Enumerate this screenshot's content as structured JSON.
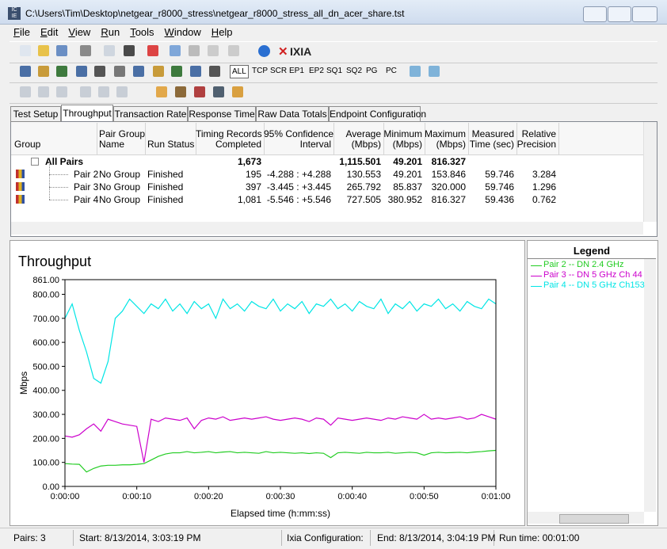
{
  "window": {
    "title": "C:\\Users\\Tim\\Desktop\\netgear_r8000_stress\\netgear_r8000_stress_all_dn_acer_share.tst"
  },
  "menu": [
    "File",
    "Edit",
    "View",
    "Run",
    "Tools",
    "Window",
    "Help"
  ],
  "toolbar": {
    "logo": "IXIA",
    "filters": [
      "ALL",
      "TCP",
      "SCR",
      "EP1",
      "EP2",
      "SQ1",
      "SQ2",
      "PG",
      "PC"
    ]
  },
  "tabs": [
    "Test Setup",
    "Throughput",
    "Transaction Rate",
    "Response Time",
    "Raw Data Totals",
    "Endpoint Configuration"
  ],
  "table": {
    "columns": [
      [
        "Group"
      ],
      [
        "Pair Group",
        "Name"
      ],
      [
        "Run Status"
      ],
      [
        "Timing Records",
        "Completed"
      ],
      [
        "95% Confidence",
        "Interval"
      ],
      [
        "Average",
        "(Mbps)"
      ],
      [
        "Minimum",
        "(Mbps)"
      ],
      [
        "Maximum",
        "(Mbps)"
      ],
      [
        "Measured",
        "Time (sec)"
      ],
      [
        "Relative",
        "Precision"
      ]
    ],
    "rows": [
      {
        "group": "All Pairs",
        "records": "1,673",
        "average": "1,115.501",
        "minimum": "49.201",
        "maximum": "816.327"
      },
      {
        "group": "Pair 2",
        "pair_group_name": "No Group",
        "run_status": "Finished",
        "records": "195",
        "confidence": "-4.288 : +4.288",
        "average": "130.553",
        "minimum": "49.201",
        "maximum": "153.846",
        "measured_time": "59.746",
        "relative_precision": "3.284"
      },
      {
        "group": "Pair 3",
        "pair_group_name": "No Group",
        "run_status": "Finished",
        "records": "397",
        "confidence": "-3.445 : +3.445",
        "average": "265.792",
        "minimum": "85.837",
        "maximum": "320.000",
        "measured_time": "59.746",
        "relative_precision": "1.296"
      },
      {
        "group": "Pair 4",
        "pair_group_name": "No Group",
        "run_status": "Finished",
        "records": "1,081",
        "confidence": "-5.546 : +5.546",
        "average": "727.505",
        "minimum": "380.952",
        "maximum": "816.327",
        "measured_time": "59.436",
        "relative_precision": "0.762"
      }
    ]
  },
  "chart_data": {
    "type": "line",
    "title": "Throughput",
    "x_label": "Elapsed time (h:mm:ss)",
    "y_label": "Mbps",
    "legend_title": "Legend",
    "x": [
      0,
      1,
      2,
      3,
      4,
      5,
      6,
      7,
      8,
      9,
      10,
      11,
      12,
      13,
      14,
      15,
      16,
      17,
      18,
      19,
      20,
      21,
      22,
      23,
      24,
      25,
      26,
      27,
      28,
      29,
      30,
      31,
      32,
      33,
      34,
      35,
      36,
      37,
      38,
      39,
      40,
      41,
      42,
      43,
      44,
      45,
      46,
      47,
      48,
      49,
      50,
      51,
      52,
      53,
      54,
      55,
      56,
      57,
      58,
      59,
      60
    ],
    "xlim": [
      0,
      60
    ],
    "xticks": [
      {
        "value": 0,
        "label": "0:00:00"
      },
      {
        "value": 10,
        "label": "0:00:10"
      },
      {
        "value": 20,
        "label": "0:00:20"
      },
      {
        "value": 30,
        "label": "0:00:30"
      },
      {
        "value": 40,
        "label": "0:00:40"
      },
      {
        "value": 50,
        "label": "0:00:50"
      },
      {
        "value": 60,
        "label": "0:01:00"
      }
    ],
    "ylim": [
      0,
      861
    ],
    "yticks": [
      {
        "value": 0,
        "label": "0.00"
      },
      {
        "value": 100,
        "label": "100.00"
      },
      {
        "value": 200,
        "label": "200.00"
      },
      {
        "value": 300,
        "label": "300.00"
      },
      {
        "value": 400,
        "label": "400.00"
      },
      {
        "value": 500,
        "label": "500.00"
      },
      {
        "value": 600,
        "label": "600.00"
      },
      {
        "value": 700,
        "label": "700.00"
      },
      {
        "value": 800,
        "label": "800.00"
      },
      {
        "value": 861,
        "label": "861.00"
      }
    ],
    "series": [
      {
        "name": "Pair 2 -- DN 2.4 GHz",
        "color": "#22cc22",
        "values": [
          95,
          93,
          92,
          60,
          75,
          85,
          88,
          88,
          90,
          90,
          92,
          95,
          110,
          125,
          135,
          140,
          140,
          145,
          140,
          142,
          145,
          140,
          143,
          145,
          140,
          142,
          140,
          138,
          145,
          140,
          142,
          140,
          138,
          140,
          137,
          140,
          138,
          120,
          140,
          142,
          140,
          138,
          142,
          140,
          140,
          142,
          138,
          140,
          142,
          140,
          130,
          140,
          142,
          140,
          141,
          142,
          140,
          143,
          145,
          148,
          150
        ]
      },
      {
        "name": "Pair 3 -- DN 5 GHz Ch 44",
        "color": "#cc00cc",
        "values": [
          210,
          205,
          215,
          240,
          260,
          230,
          280,
          270,
          260,
          255,
          250,
          100,
          280,
          270,
          285,
          280,
          275,
          285,
          240,
          275,
          285,
          280,
          290,
          275,
          280,
          285,
          280,
          285,
          290,
          280,
          275,
          280,
          285,
          280,
          270,
          285,
          280,
          255,
          285,
          280,
          275,
          280,
          285,
          280,
          275,
          285,
          280,
          290,
          285,
          280,
          300,
          280,
          285,
          280,
          285,
          290,
          280,
          285,
          300,
          290,
          280
        ]
      },
      {
        "name": "Pair 4 -- DN 5 GHz Ch153",
        "color": "#00e5e5",
        "values": [
          700,
          760,
          650,
          560,
          450,
          430,
          520,
          700,
          730,
          780,
          750,
          720,
          760,
          740,
          780,
          730,
          760,
          720,
          770,
          740,
          760,
          700,
          780,
          740,
          760,
          730,
          770,
          750,
          740,
          780,
          730,
          760,
          740,
          770,
          720,
          760,
          750,
          780,
          740,
          760,
          730,
          770,
          750,
          740,
          780,
          720,
          760,
          740,
          770,
          730,
          760,
          750,
          780,
          740,
          760,
          730,
          770,
          750,
          740,
          780,
          760
        ]
      }
    ]
  },
  "status": [
    "Pairs: 3",
    "Start: 8/13/2014, 3:03:19 PM",
    "Ixia Configuration:",
    "End: 8/13/2014, 3:04:19 PM",
    "Run time: 00:01:00"
  ]
}
